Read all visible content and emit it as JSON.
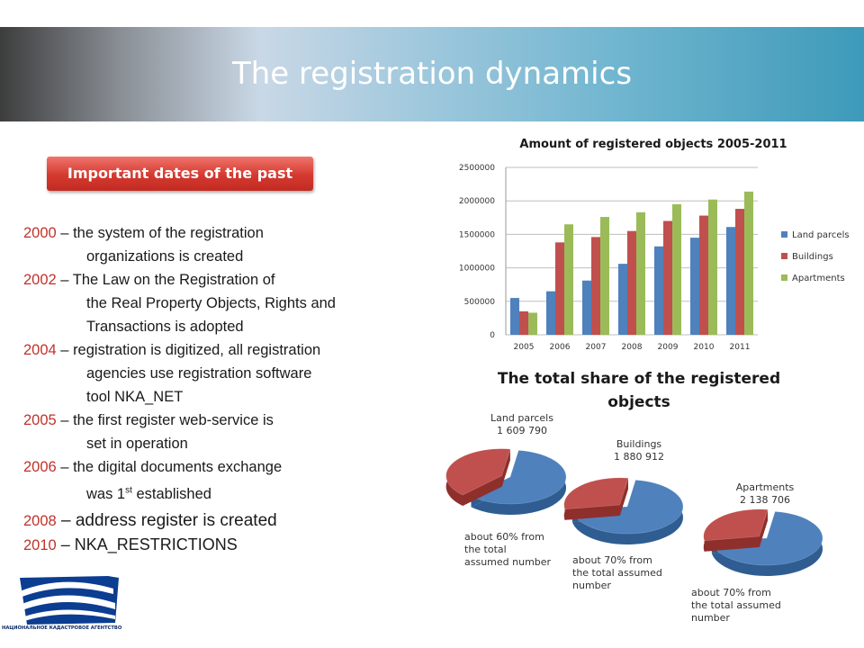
{
  "header": {
    "title": "The registration dynamics"
  },
  "dates_button": {
    "label": "Important dates of the past"
  },
  "timeline": [
    {
      "year": "2000",
      "line1": " – the system of the registration",
      "line2": "organizations is created",
      "line3": ""
    },
    {
      "year": "2002",
      "line1": " – The Law on the Registration of",
      "line2": "the Real Property Objects, Rights and",
      "line3": "Transactions is adopted"
    },
    {
      "year": "2004",
      "line1": " – registration is digitized, all registration",
      "line2": "agencies use registration software",
      "line3": "tool NKA_NET"
    },
    {
      "year": "2005",
      "line1": " – the first register web-service is",
      "line2": "set in operation",
      "line3": ""
    },
    {
      "year": "2006",
      "line1": " – the digital documents exchange",
      "line2a": "was 1",
      "line2sup": "st",
      "line2b": " established"
    },
    {
      "year": "2008",
      "line1": " – address register is created"
    },
    {
      "year": "2010",
      "line1": " – NKA_RESTRICTIONS"
    }
  ],
  "logo": {
    "caption": "НАЦИОНАЛЬНОЕ КАДАСТРОВОЕ АГЕНТСТВО"
  },
  "chart_data": [
    {
      "type": "bar",
      "title": "Amount of registered objects 2005-2011",
      "categories": [
        "2005",
        "2006",
        "2007",
        "2008",
        "2009",
        "2010",
        "2011"
      ],
      "series": [
        {
          "name": "Land parcels",
          "color": "#4f81bd",
          "values": [
            550000,
            650000,
            810000,
            1060000,
            1320000,
            1450000,
            1609790
          ]
        },
        {
          "name": "Buildings",
          "color": "#c0504d",
          "values": [
            350000,
            1380000,
            1460000,
            1550000,
            1700000,
            1780000,
            1880912
          ]
        },
        {
          "name": "Apartments",
          "color": "#9bbb59",
          "values": [
            330000,
            1650000,
            1760000,
            1830000,
            1950000,
            2020000,
            2138706
          ]
        }
      ],
      "ylim": [
        0,
        2500000
      ],
      "yticks": [
        "0",
        "500000",
        "1000000",
        "1500000",
        "2000000",
        "2500000"
      ],
      "legend": "right"
    },
    {
      "type": "pie",
      "title": "The total share of the registered objects",
      "pies": [
        {
          "name": "Land parcels",
          "value_label": "1 609 790",
          "share": 0.6,
          "note_lines": [
            "about 60% from",
            "the total",
            "assumed number"
          ]
        },
        {
          "name": "Buildings",
          "value_label": "1 880 912",
          "share": 0.7,
          "note_lines": [
            "about 70% from",
            "the total assumed",
            "number"
          ]
        },
        {
          "name": "Apartments",
          "value_label": "2 138 706",
          "share": 0.7,
          "note_lines": [
            "about 70% from",
            "the total assumed",
            "number"
          ]
        }
      ],
      "colors": {
        "registered": "#4f81bd",
        "remaining": "#c0504d"
      }
    }
  ]
}
